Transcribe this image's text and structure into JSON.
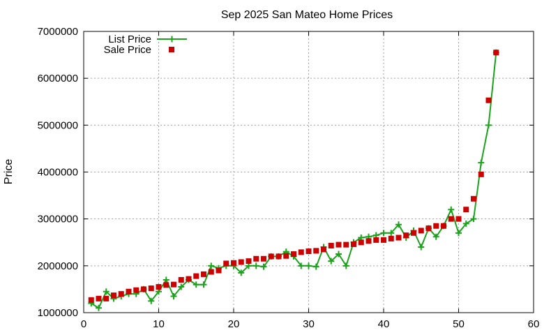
{
  "chart_data": {
    "type": "line",
    "title": "Sep 2025 San Mateo Home Prices",
    "xlabel": "",
    "ylabel": "Price",
    "xlim": [
      0,
      60
    ],
    "ylim": [
      1000000,
      7000000
    ],
    "xticks": [
      0,
      10,
      20,
      30,
      40,
      50,
      60
    ],
    "yticks": [
      1000000,
      2000000,
      3000000,
      4000000,
      5000000,
      6000000,
      7000000
    ],
    "grid": true,
    "legend_position": "top-left",
    "series": [
      {
        "name": "List Price",
        "style": "line-with-plus-markers",
        "color": "#1aa31a",
        "x": [
          1,
          2,
          3,
          4,
          5,
          6,
          7,
          8,
          9,
          10,
          11,
          12,
          13,
          14,
          15,
          16,
          17,
          18,
          19,
          20,
          21,
          22,
          23,
          24,
          25,
          26,
          27,
          28,
          29,
          30,
          31,
          32,
          33,
          34,
          35,
          36,
          37,
          38,
          39,
          40,
          41,
          42,
          43,
          44,
          45,
          46,
          47,
          48,
          49,
          50,
          51,
          52,
          53,
          54,
          55
        ],
        "y": [
          1200000,
          1100000,
          1450000,
          1300000,
          1350000,
          1400000,
          1400000,
          1500000,
          1250000,
          1450000,
          1700000,
          1350000,
          1550000,
          1700000,
          1600000,
          1600000,
          2000000,
          1950000,
          2000000,
          2000000,
          1850000,
          2000000,
          2000000,
          1980000,
          2200000,
          2200000,
          2300000,
          2200000,
          2000000,
          2000000,
          1980000,
          2400000,
          2100000,
          2250000,
          2000000,
          2500000,
          2600000,
          2620000,
          2650000,
          2700000,
          2700000,
          2880000,
          2600000,
          2750000,
          2400000,
          2800000,
          2620000,
          2850000,
          3200000,
          2700000,
          2900000,
          3000000,
          4200000,
          5000000,
          6550000
        ]
      },
      {
        "name": "Sale Price",
        "style": "square-markers",
        "color": "#cc0000",
        "x": [
          1,
          2,
          3,
          4,
          5,
          6,
          7,
          8,
          9,
          10,
          11,
          12,
          13,
          14,
          15,
          16,
          17,
          18,
          19,
          20,
          21,
          22,
          23,
          24,
          25,
          26,
          27,
          28,
          29,
          30,
          31,
          32,
          33,
          34,
          35,
          36,
          37,
          38,
          39,
          40,
          41,
          42,
          43,
          44,
          45,
          46,
          47,
          48,
          49,
          50,
          51,
          52,
          53,
          54,
          55
        ],
        "y": [
          1270000,
          1300000,
          1300000,
          1370000,
          1400000,
          1450000,
          1480000,
          1500000,
          1520000,
          1550000,
          1590000,
          1600000,
          1700000,
          1720000,
          1780000,
          1820000,
          1870000,
          1900000,
          2050000,
          2060000,
          2080000,
          2100000,
          2150000,
          2150000,
          2200000,
          2200000,
          2210000,
          2250000,
          2290000,
          2310000,
          2320000,
          2350000,
          2430000,
          2450000,
          2450000,
          2460000,
          2500000,
          2530000,
          2550000,
          2550000,
          2580000,
          2600000,
          2650000,
          2700000,
          2750000,
          2800000,
          2850000,
          2850000,
          3000000,
          3000000,
          3200000,
          3430000,
          3950000,
          5530000,
          6550000
        ]
      }
    ]
  }
}
